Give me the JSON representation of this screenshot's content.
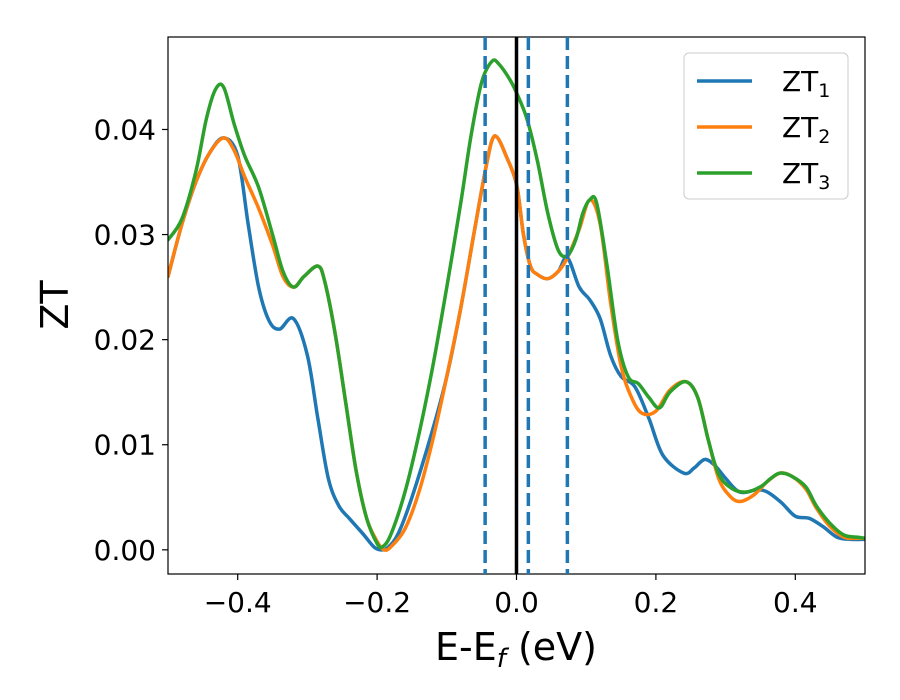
{
  "chart_data": {
    "type": "line",
    "xlabel": "E-E",
    "xlabel_sub": "f",
    "xlabel_suffix": " (eV)",
    "ylabel": "ZT",
    "xlim": [
      -0.5,
      0.5
    ],
    "ylim": [
      -0.0023,
      0.0488
    ],
    "xticks": [
      -0.4,
      -0.2,
      0.0,
      0.2,
      0.4
    ],
    "xtick_labels": [
      "−0.4",
      "−0.2",
      "0.0",
      "0.2",
      "0.4"
    ],
    "yticks": [
      0.0,
      0.01,
      0.02,
      0.03,
      0.04
    ],
    "ytick_labels": [
      "0.00",
      "0.01",
      "0.02",
      "0.03",
      "0.04"
    ],
    "grid": false,
    "legend_position": "top-right",
    "vertical_lines": [
      {
        "x": 0.0,
        "style": "solid",
        "color": "#000000"
      },
      {
        "x": -0.045,
        "style": "dashed",
        "color": "#1f77b4"
      },
      {
        "x": 0.017,
        "style": "dashed",
        "color": "#1f77b4"
      },
      {
        "x": 0.073,
        "style": "dashed",
        "color": "#1f77b4"
      }
    ],
    "series": [
      {
        "name": "ZT",
        "name_sub": "1",
        "color": "#1f77b4",
        "points": [
          [
            -0.5,
            0.026
          ],
          [
            -0.48,
            0.031
          ],
          [
            -0.46,
            0.035
          ],
          [
            -0.44,
            0.0378
          ],
          [
            -0.42,
            0.0392
          ],
          [
            -0.4,
            0.0375
          ],
          [
            -0.385,
            0.031
          ],
          [
            -0.37,
            0.025
          ],
          [
            -0.355,
            0.0218
          ],
          [
            -0.34,
            0.021
          ],
          [
            -0.32,
            0.022
          ],
          [
            -0.3,
            0.0185
          ],
          [
            -0.285,
            0.0125
          ],
          [
            -0.27,
            0.0068
          ],
          [
            -0.255,
            0.0042
          ],
          [
            -0.24,
            0.003
          ],
          [
            -0.22,
            0.0015
          ],
          [
            -0.205,
            0.0003
          ],
          [
            -0.195,
            0.0
          ],
          [
            -0.185,
            0.0002
          ],
          [
            -0.17,
            0.0015
          ],
          [
            -0.15,
            0.005
          ],
          [
            -0.12,
            0.0115
          ],
          [
            -0.1,
            0.0165
          ],
          [
            -0.08,
            0.023
          ],
          [
            -0.06,
            0.0305
          ],
          [
            -0.045,
            0.036
          ],
          [
            -0.035,
            0.039
          ],
          [
            -0.027,
            0.0392
          ],
          [
            -0.015,
            0.0375
          ],
          [
            0.0,
            0.0348
          ],
          [
            0.01,
            0.03
          ],
          [
            0.02,
            0.027
          ],
          [
            0.03,
            0.0262
          ],
          [
            0.045,
            0.0258
          ],
          [
            0.06,
            0.0265
          ],
          [
            0.073,
            0.0278
          ],
          [
            0.09,
            0.025
          ],
          [
            0.105,
            0.0238
          ],
          [
            0.12,
            0.022
          ],
          [
            0.135,
            0.0185
          ],
          [
            0.15,
            0.0165
          ],
          [
            0.17,
            0.0155
          ],
          [
            0.19,
            0.0125
          ],
          [
            0.21,
            0.009
          ],
          [
            0.24,
            0.0073
          ],
          [
            0.255,
            0.0078
          ],
          [
            0.27,
            0.0086
          ],
          [
            0.285,
            0.008
          ],
          [
            0.3,
            0.0068
          ],
          [
            0.32,
            0.0055
          ],
          [
            0.345,
            0.0057
          ],
          [
            0.36,
            0.0055
          ],
          [
            0.38,
            0.0045
          ],
          [
            0.4,
            0.0032
          ],
          [
            0.42,
            0.003
          ],
          [
            0.44,
            0.0022
          ],
          [
            0.46,
            0.0012
          ],
          [
            0.48,
            0.001
          ],
          [
            0.5,
            0.001
          ]
        ]
      },
      {
        "name": "ZT",
        "name_sub": "2",
        "color": "#ff7f0e",
        "points": [
          [
            -0.5,
            0.026
          ],
          [
            -0.48,
            0.031
          ],
          [
            -0.46,
            0.035
          ],
          [
            -0.44,
            0.0378
          ],
          [
            -0.42,
            0.0392
          ],
          [
            -0.405,
            0.038
          ],
          [
            -0.39,
            0.0355
          ],
          [
            -0.37,
            0.0325
          ],
          [
            -0.35,
            0.029
          ],
          [
            -0.335,
            0.026
          ],
          [
            -0.32,
            0.025
          ],
          [
            -0.305,
            0.026
          ],
          [
            -0.285,
            0.027
          ],
          [
            -0.275,
            0.0255
          ],
          [
            -0.26,
            0.0205
          ],
          [
            -0.245,
            0.014
          ],
          [
            -0.23,
            0.0075
          ],
          [
            -0.215,
            0.003
          ],
          [
            -0.2,
            0.0008
          ],
          [
            -0.19,
            0.0
          ],
          [
            -0.18,
            0.0003
          ],
          [
            -0.16,
            0.002
          ],
          [
            -0.14,
            0.0055
          ],
          [
            -0.12,
            0.0105
          ],
          [
            -0.1,
            0.0165
          ],
          [
            -0.08,
            0.023
          ],
          [
            -0.06,
            0.0305
          ],
          [
            -0.045,
            0.036
          ],
          [
            -0.035,
            0.039
          ],
          [
            -0.027,
            0.0392
          ],
          [
            -0.015,
            0.0375
          ],
          [
            0.0,
            0.0348
          ],
          [
            0.01,
            0.03
          ],
          [
            0.02,
            0.027
          ],
          [
            0.03,
            0.0262
          ],
          [
            0.045,
            0.0258
          ],
          [
            0.06,
            0.0265
          ],
          [
            0.073,
            0.0278
          ],
          [
            0.09,
            0.0305
          ],
          [
            0.105,
            0.0333
          ],
          [
            0.12,
            0.031
          ],
          [
            0.135,
            0.0235
          ],
          [
            0.15,
            0.0175
          ],
          [
            0.165,
            0.0145
          ],
          [
            0.18,
            0.013
          ],
          [
            0.2,
            0.0132
          ],
          [
            0.22,
            0.0152
          ],
          [
            0.243,
            0.016
          ],
          [
            0.26,
            0.0145
          ],
          [
            0.275,
            0.0105
          ],
          [
            0.29,
            0.0068
          ],
          [
            0.305,
            0.0052
          ],
          [
            0.32,
            0.0046
          ],
          [
            0.34,
            0.0052
          ],
          [
            0.36,
            0.0065
          ],
          [
            0.378,
            0.0073
          ],
          [
            0.395,
            0.007
          ],
          [
            0.415,
            0.0058
          ],
          [
            0.43,
            0.004
          ],
          [
            0.45,
            0.0022
          ],
          [
            0.47,
            0.0012
          ],
          [
            0.49,
            0.0011
          ],
          [
            0.5,
            0.0011
          ]
        ]
      },
      {
        "name": "ZT",
        "name_sub": "3",
        "color": "#2ca02c",
        "points": [
          [
            -0.5,
            0.0295
          ],
          [
            -0.48,
            0.0315
          ],
          [
            -0.46,
            0.036
          ],
          [
            -0.445,
            0.041
          ],
          [
            -0.432,
            0.0438
          ],
          [
            -0.42,
            0.044
          ],
          [
            -0.405,
            0.0405
          ],
          [
            -0.39,
            0.0375
          ],
          [
            -0.37,
            0.0345
          ],
          [
            -0.35,
            0.03
          ],
          [
            -0.335,
            0.0265
          ],
          [
            -0.32,
            0.025
          ],
          [
            -0.305,
            0.026
          ],
          [
            -0.285,
            0.027
          ],
          [
            -0.275,
            0.0255
          ],
          [
            -0.26,
            0.0205
          ],
          [
            -0.245,
            0.014
          ],
          [
            -0.23,
            0.0075
          ],
          [
            -0.215,
            0.003
          ],
          [
            -0.2,
            0.0006
          ],
          [
            -0.192,
            0.0003
          ],
          [
            -0.18,
            0.0015
          ],
          [
            -0.16,
            0.0055
          ],
          [
            -0.14,
            0.011
          ],
          [
            -0.12,
            0.0175
          ],
          [
            -0.1,
            0.025
          ],
          [
            -0.08,
            0.033
          ],
          [
            -0.065,
            0.0395
          ],
          [
            -0.05,
            0.0445
          ],
          [
            -0.035,
            0.0465
          ],
          [
            -0.025,
            0.0462
          ],
          [
            -0.01,
            0.0448
          ],
          [
            0.0,
            0.0435
          ],
          [
            0.015,
            0.041
          ],
          [
            0.03,
            0.037
          ],
          [
            0.045,
            0.032
          ],
          [
            0.06,
            0.0285
          ],
          [
            0.073,
            0.028
          ],
          [
            0.085,
            0.0295
          ],
          [
            0.095,
            0.032
          ],
          [
            0.105,
            0.0333
          ],
          [
            0.115,
            0.033
          ],
          [
            0.13,
            0.027
          ],
          [
            0.145,
            0.02
          ],
          [
            0.16,
            0.0165
          ],
          [
            0.175,
            0.0158
          ],
          [
            0.19,
            0.0145
          ],
          [
            0.205,
            0.0135
          ],
          [
            0.22,
            0.015
          ],
          [
            0.243,
            0.016
          ],
          [
            0.26,
            0.0145
          ],
          [
            0.275,
            0.0105
          ],
          [
            0.29,
            0.0072
          ],
          [
            0.31,
            0.0058
          ],
          [
            0.33,
            0.0055
          ],
          [
            0.35,
            0.006
          ],
          [
            0.365,
            0.0068
          ],
          [
            0.378,
            0.0073
          ],
          [
            0.395,
            0.007
          ],
          [
            0.415,
            0.006
          ],
          [
            0.43,
            0.0042
          ],
          [
            0.45,
            0.0025
          ],
          [
            0.47,
            0.0014
          ],
          [
            0.49,
            0.0012
          ],
          [
            0.5,
            0.0011
          ]
        ]
      }
    ]
  }
}
